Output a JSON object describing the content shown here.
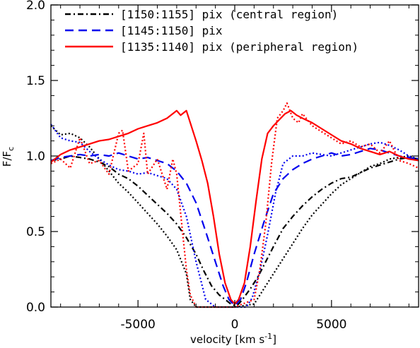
{
  "chart_data": {
    "type": "line",
    "title": "",
    "xlabel": "velocity [km s",
    "xlabel_sup": "-1",
    "xlabel_end": "]",
    "ylabel": "F/F",
    "ylabel_sub": "c",
    "xlim": [
      -9500,
      9500
    ],
    "ylim": [
      0.0,
      2.0
    ],
    "x_ticks": [
      -5000,
      0,
      5000
    ],
    "x_tick_labels": [
      "-5000",
      "0",
      "5000"
    ],
    "y_ticks": [
      0.0,
      0.5,
      1.0,
      1.5,
      2.0
    ],
    "y_tick_labels": [
      "0.0",
      "0.5",
      "1.0",
      "1.5",
      "2.0"
    ],
    "grid": false,
    "legend_position": "top-left",
    "legend": [
      {
        "label": "[1150:1155] pix (central region)",
        "color": "#000000",
        "dash": "dashdot"
      },
      {
        "label": "[1145:1150] pix",
        "color": "#0000ee",
        "dash": "dashed"
      },
      {
        "label": "[1135:1140] pix (peripheral region)",
        "color": "#ff0000",
        "dash": "solid"
      }
    ],
    "series": [
      {
        "color": "#000000",
        "dash": "dashdot",
        "x": [
          -9500,
          -9000,
          -8500,
          -8000,
          -7500,
          -7000,
          -6500,
          -6000,
          -5500,
          -5000,
          -4500,
          -4000,
          -3500,
          -3000,
          -2500,
          -2000,
          -1600,
          -1200,
          -800,
          -400,
          -200,
          0,
          200,
          400,
          800,
          1200,
          1600,
          2000,
          2500,
          3000,
          3500,
          4000,
          4500,
          5000,
          5500,
          6000,
          6500,
          7000,
          7500,
          8000,
          8500,
          9000,
          9500
        ],
        "y": [
          0.97,
          0.98,
          1.0,
          0.99,
          0.98,
          0.96,
          0.93,
          0.88,
          0.85,
          0.8,
          0.74,
          0.68,
          0.62,
          0.55,
          0.46,
          0.35,
          0.24,
          0.14,
          0.08,
          0.04,
          0.02,
          0.01,
          0.02,
          0.05,
          0.12,
          0.2,
          0.3,
          0.4,
          0.52,
          0.6,
          0.67,
          0.73,
          0.78,
          0.82,
          0.85,
          0.86,
          0.89,
          0.92,
          0.94,
          0.96,
          0.98,
          0.99,
          0.98
        ]
      },
      {
        "color": "#000000",
        "dash": "dotted",
        "x": [
          -9500,
          -9000,
          -8500,
          -8000,
          -7500,
          -7000,
          -6500,
          -6000,
          -5500,
          -5000,
          -4500,
          -4000,
          -3500,
          -3000,
          -2500,
          -2300,
          -2000,
          -1000,
          0,
          1000,
          1300,
          1600,
          2000,
          2500,
          3000,
          3500,
          4000,
          4500,
          5000,
          5500,
          6000,
          6500,
          7000,
          7500,
          8000,
          8500,
          9000,
          9500
        ],
        "y": [
          1.2,
          1.14,
          1.15,
          1.12,
          1.06,
          0.98,
          0.9,
          0.82,
          0.76,
          0.69,
          0.62,
          0.55,
          0.47,
          0.38,
          0.22,
          0.05,
          0.0,
          0.0,
          0.0,
          0.02,
          0.08,
          0.14,
          0.22,
          0.32,
          0.42,
          0.52,
          0.61,
          0.68,
          0.75,
          0.81,
          0.85,
          0.89,
          0.93,
          0.95,
          0.98,
          0.99,
          1.0,
          0.97
        ]
      },
      {
        "color": "#0000ee",
        "dash": "dashed",
        "x": [
          -9500,
          -9000,
          -8500,
          -8000,
          -7500,
          -7000,
          -6500,
          -6000,
          -5500,
          -5000,
          -4500,
          -4000,
          -3500,
          -3000,
          -2500,
          -2000,
          -1500,
          -1000,
          -600,
          -300,
          0,
          300,
          600,
          1000,
          1500,
          2000,
          2500,
          3000,
          3500,
          4000,
          4500,
          5000,
          5500,
          6000,
          6500,
          7000,
          7500,
          8000,
          8500,
          9000,
          9500
        ],
        "y": [
          0.97,
          0.99,
          1.0,
          1.01,
          1.0,
          1.01,
          1.0,
          1.02,
          1.0,
          0.98,
          0.99,
          0.97,
          0.95,
          0.9,
          0.82,
          0.69,
          0.5,
          0.3,
          0.14,
          0.05,
          0.01,
          0.05,
          0.16,
          0.35,
          0.56,
          0.75,
          0.85,
          0.91,
          0.95,
          0.98,
          1.0,
          1.02,
          1.0,
          1.01,
          1.03,
          1.05,
          1.04,
          1.02,
          1.0,
          0.99,
          0.97
        ]
      },
      {
        "color": "#0000ee",
        "dash": "dotted",
        "x": [
          -9500,
          -9000,
          -8500,
          -8000,
          -7500,
          -7000,
          -6500,
          -6000,
          -5500,
          -5000,
          -4500,
          -4000,
          -3500,
          -3000,
          -2500,
          -2000,
          -1500,
          -1000,
          0,
          600,
          900,
          1300,
          1700,
          2100,
          2500,
          3000,
          3500,
          4000,
          4500,
          5000,
          5500,
          6000,
          6500,
          7000,
          7500,
          8000,
          8500,
          9000,
          9500
        ],
        "y": [
          1.21,
          1.12,
          1.1,
          1.09,
          1.03,
          0.98,
          0.94,
          0.91,
          0.9,
          0.88,
          0.89,
          0.87,
          0.85,
          0.78,
          0.6,
          0.3,
          0.05,
          0.0,
          0.0,
          0.0,
          0.06,
          0.24,
          0.48,
          0.75,
          0.95,
          1.0,
          1.0,
          1.02,
          1.01,
          1.0,
          1.02,
          1.04,
          1.06,
          1.08,
          1.09,
          1.07,
          1.04,
          1.0,
          0.98
        ]
      },
      {
        "color": "#ff0000",
        "dash": "solid",
        "x": [
          -9500,
          -9000,
          -8500,
          -8000,
          -7500,
          -7000,
          -6500,
          -6000,
          -5500,
          -5000,
          -4500,
          -4000,
          -3500,
          -3000,
          -2800,
          -2500,
          -2300,
          -2000,
          -1700,
          -1400,
          -1100,
          -800,
          -500,
          -200,
          0,
          200,
          500,
          800,
          1100,
          1400,
          1700,
          2000,
          2300,
          2600,
          2900,
          3200,
          3500,
          4000,
          4500,
          5000,
          5500,
          6000,
          6500,
          7000,
          7500,
          8000,
          8500,
          9000,
          9500
        ],
        "y": [
          0.96,
          1.01,
          1.04,
          1.06,
          1.08,
          1.1,
          1.11,
          1.13,
          1.15,
          1.18,
          1.2,
          1.22,
          1.25,
          1.3,
          1.27,
          1.3,
          1.22,
          1.1,
          0.97,
          0.82,
          0.6,
          0.35,
          0.16,
          0.05,
          0.02,
          0.05,
          0.16,
          0.4,
          0.7,
          0.98,
          1.15,
          1.2,
          1.24,
          1.28,
          1.3,
          1.27,
          1.25,
          1.22,
          1.18,
          1.14,
          1.1,
          1.08,
          1.05,
          1.03,
          1.01,
          1.03,
          1.0,
          0.98,
          0.97
        ]
      },
      {
        "color": "#ff0000",
        "dash": "dotted",
        "x": [
          -9500,
          -9000,
          -8500,
          -8000,
          -7500,
          -7000,
          -6500,
          -6000,
          -5800,
          -5500,
          -5000,
          -4700,
          -4500,
          -4000,
          -3500,
          -3200,
          -3000,
          -2700,
          -2500,
          -2300,
          -2000,
          -1000,
          0,
          1000,
          1300,
          1600,
          1900,
          2200,
          2500,
          2700,
          3000,
          3300,
          3500,
          4000,
          4500,
          5000,
          5500,
          6000,
          6500,
          7000,
          7500,
          8000,
          8500,
          9000,
          9500
        ],
        "y": [
          0.95,
          0.98,
          0.92,
          1.12,
          0.95,
          0.97,
          0.88,
          1.15,
          1.17,
          0.9,
          0.95,
          1.15,
          0.88,
          0.98,
          0.78,
          0.98,
          0.88,
          0.5,
          0.25,
          0.08,
          0.0,
          0.0,
          0.0,
          0.05,
          0.25,
          0.55,
          0.95,
          1.25,
          1.3,
          1.35,
          1.25,
          1.22,
          1.28,
          1.2,
          1.16,
          1.12,
          1.08,
          1.1,
          1.06,
          1.08,
          1.02,
          1.1,
          0.97,
          0.95,
          0.92
        ]
      }
    ]
  }
}
